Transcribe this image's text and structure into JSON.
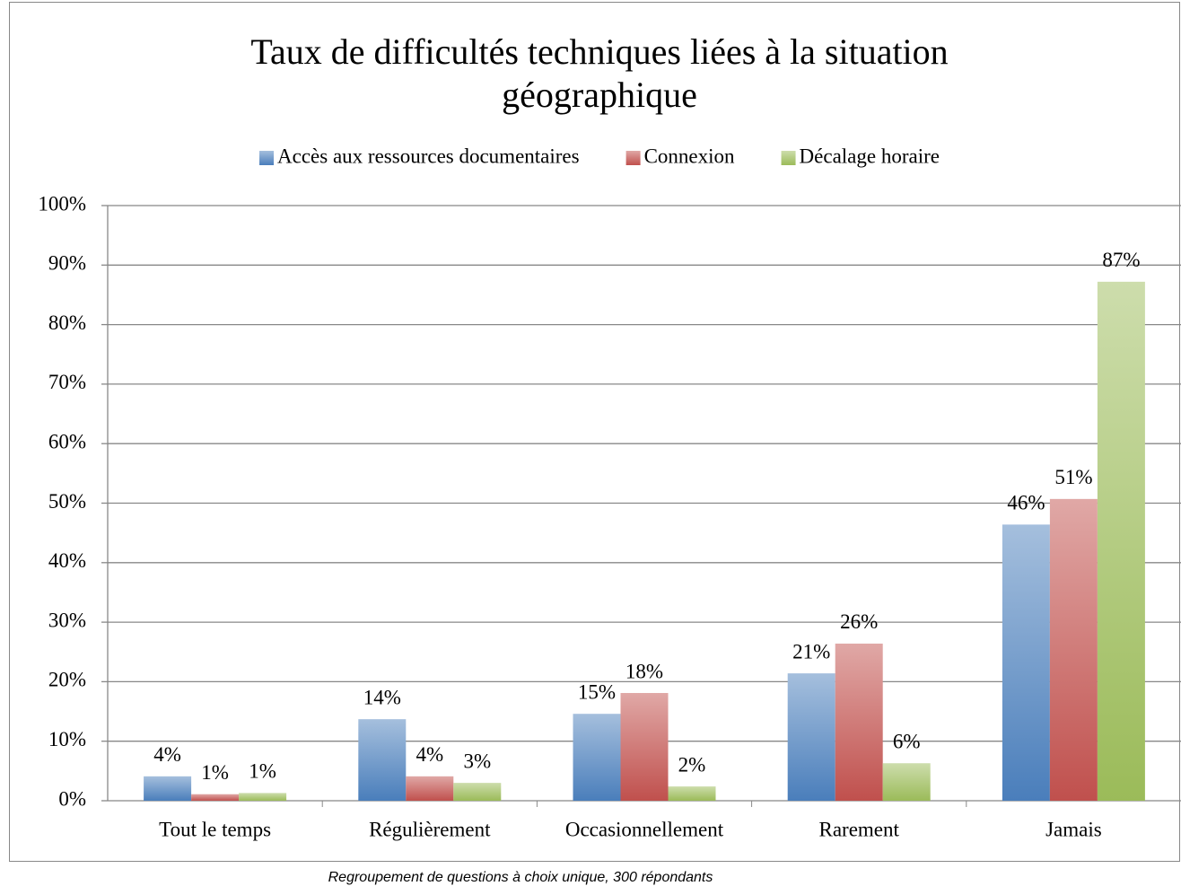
{
  "chart_data": {
    "type": "bar",
    "title": [
      "Taux de difficultés techniques liées à la situation",
      "géographique"
    ],
    "note": "Regroupement de questions à choix unique, 300 répondants",
    "categories": [
      "Tout le temps",
      "Régulièrement",
      "Occasionnellement",
      "Rarement",
      "Jamais"
    ],
    "series": [
      {
        "name": "Accès aux ressources documentaires",
        "color": "#4a7ebb",
        "values": [
          4.1,
          13.7,
          14.6,
          21.4,
          46.4
        ],
        "value_labels": [
          "4%",
          "14%",
          "15%",
          "21%",
          "46%"
        ]
      },
      {
        "name": "Connexion",
        "color": "#c0504d",
        "values": [
          1.1,
          4.1,
          18.1,
          26.4,
          50.7
        ],
        "value_labels": [
          "1%",
          "4%",
          "18%",
          "26%",
          "51%"
        ]
      },
      {
        "name": "Décalage horaire",
        "color": "#9bbb59",
        "values": [
          1.3,
          3.0,
          2.4,
          6.3,
          87.2
        ],
        "value_labels": [
          "1%",
          "3%",
          "2%",
          "6%",
          "87%"
        ]
      }
    ],
    "ylim": [
      0,
      100
    ],
    "yticks": [
      {
        "value": 0,
        "label": "0%"
      },
      {
        "value": 10,
        "label": "10%"
      },
      {
        "value": 20,
        "label": "20%"
      },
      {
        "value": 30,
        "label": "30%"
      },
      {
        "value": 40,
        "label": "40%"
      },
      {
        "value": 50,
        "label": "50%"
      },
      {
        "value": 60,
        "label": "60%"
      },
      {
        "value": 70,
        "label": "70%"
      },
      {
        "value": 80,
        "label": "80%"
      },
      {
        "value": 90,
        "label": "90%"
      },
      {
        "value": 100,
        "label": "100%"
      }
    ],
    "grid": true,
    "legend": "top"
  }
}
